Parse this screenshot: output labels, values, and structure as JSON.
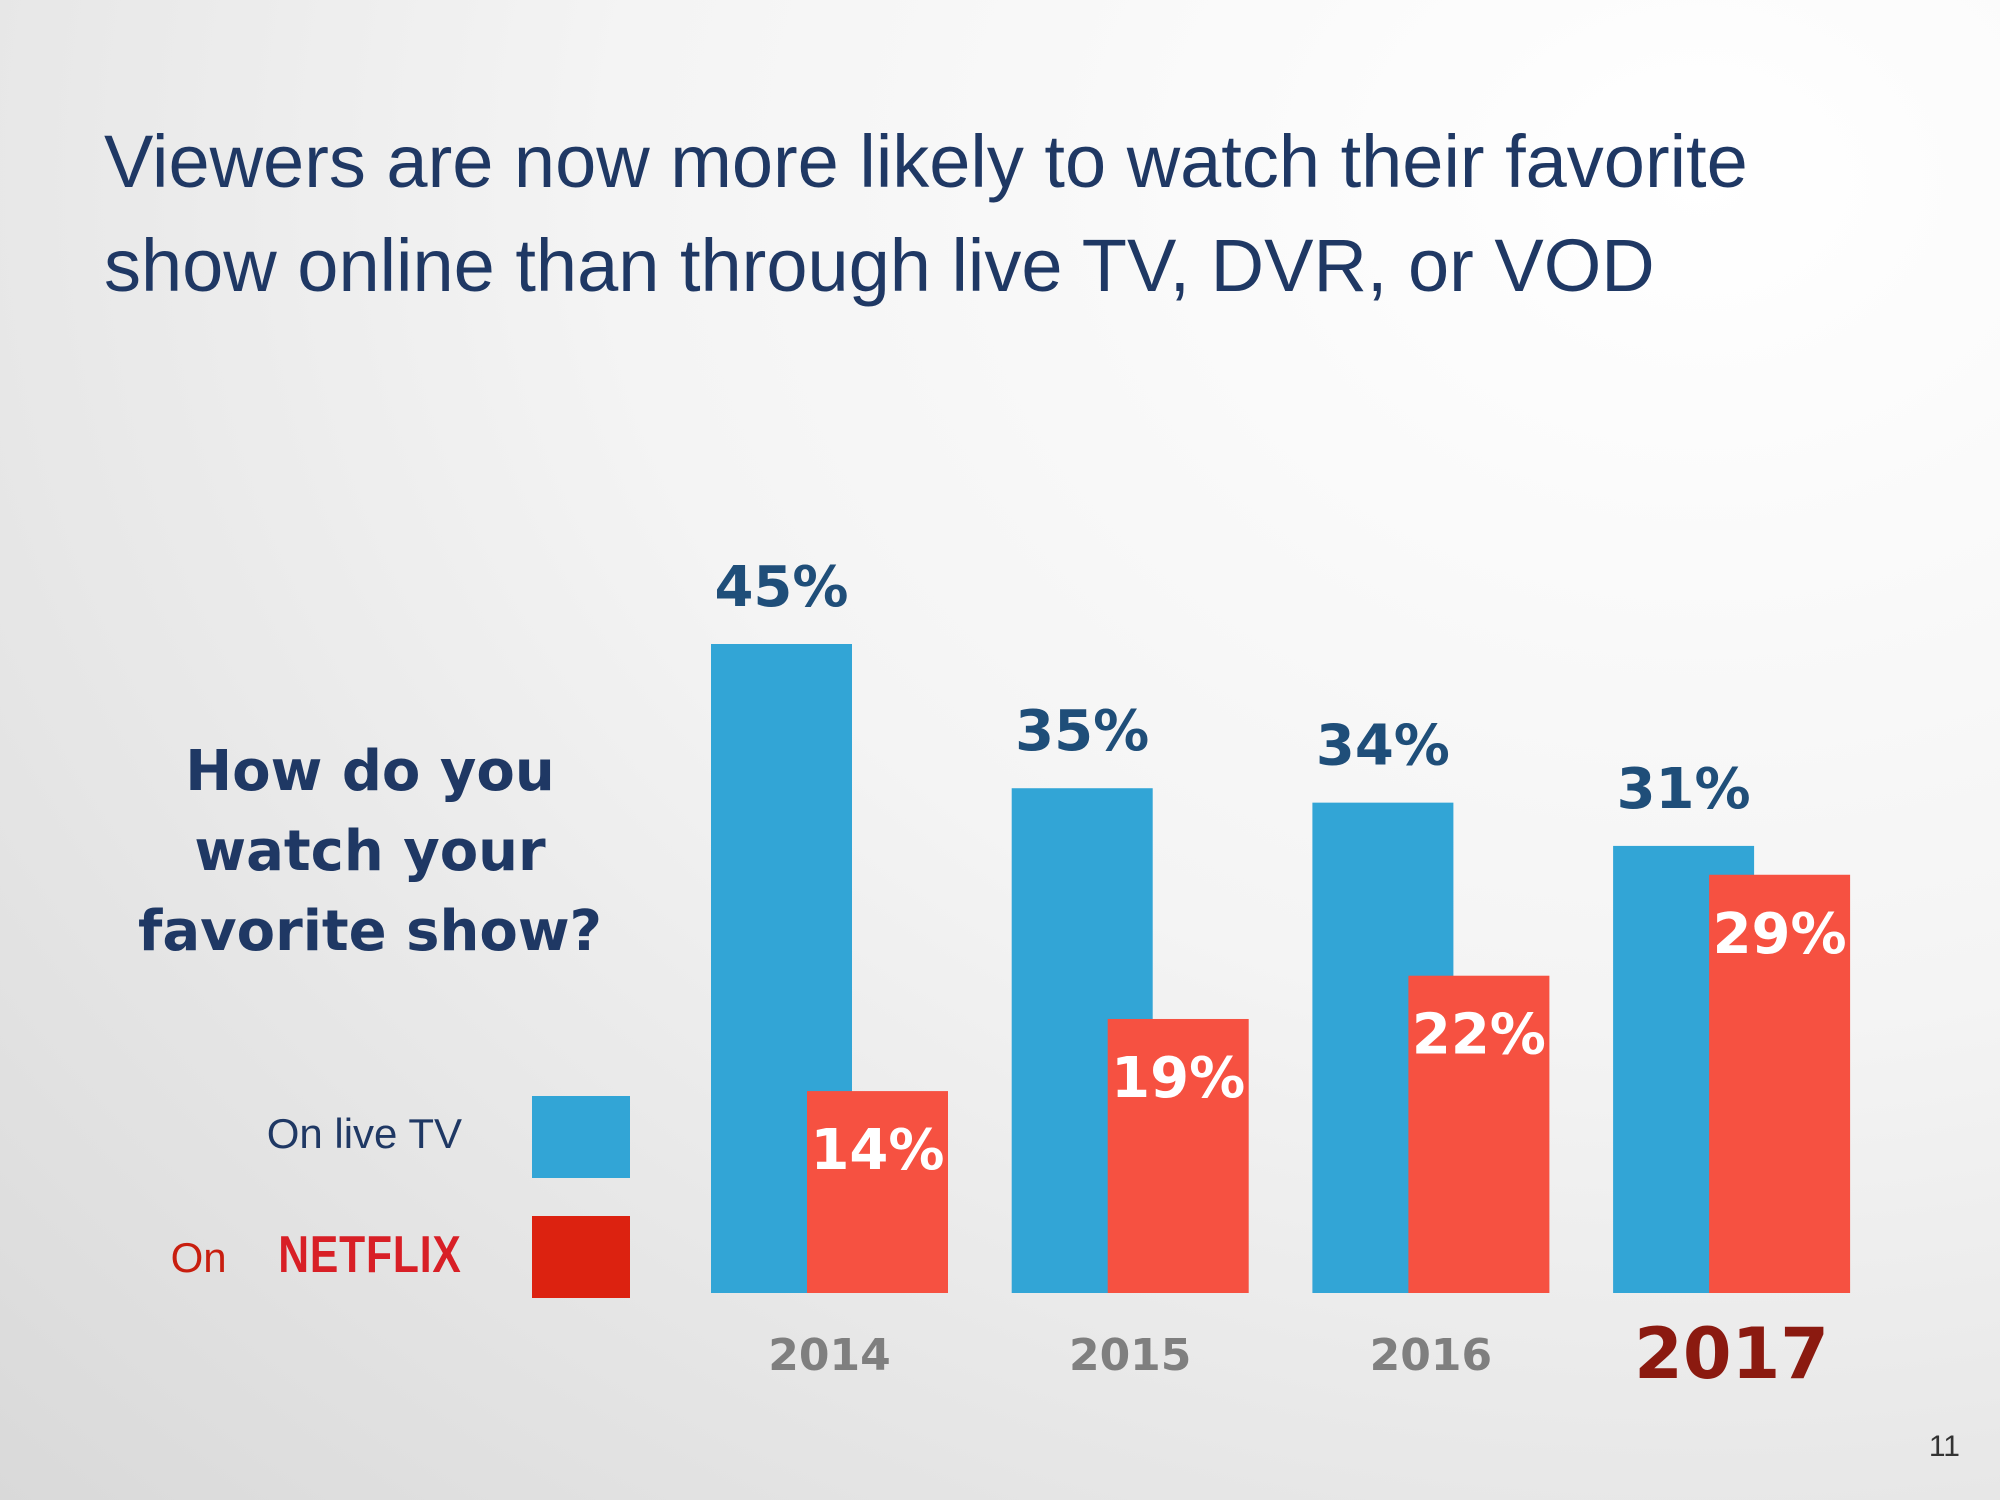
{
  "slide": {
    "title_line1": "Viewers are now more likely to watch their favorite",
    "title_line2": "show online than through live TV, DVR, or VOD",
    "page_number": "11"
  },
  "question": {
    "line1": "How do you",
    "line2": "watch your",
    "line3": "favorite show?"
  },
  "legend": {
    "live_label": "On live TV",
    "netflix_prefix": "On ",
    "netflix_brand": "NETFLIX"
  },
  "colors": {
    "title": "#1f3864",
    "live_tv_bar": "#32a5d6",
    "netflix_bar": "#f65141",
    "netflix_swatch": "#dc2210",
    "live_value_label": "#1f4e79",
    "netflix_value_label": "#ffffff",
    "tick_label": "#7f7f7f",
    "highlight_tick": "#8b1a10"
  },
  "chart_data": {
    "type": "bar",
    "categories": [
      "2014",
      "2015",
      "2016",
      "2017"
    ],
    "highlight_category": "2017",
    "series": [
      {
        "name": "On live TV",
        "values": [
          45,
          35,
          34,
          31
        ],
        "labels": [
          "45%",
          "35%",
          "34%",
          "31%"
        ]
      },
      {
        "name": "On NETFLIX",
        "values": [
          14,
          19,
          22,
          29
        ],
        "labels": [
          "14%",
          "19%",
          "22%",
          "29%"
        ]
      }
    ],
    "ylim": [
      0,
      45
    ],
    "grid": false,
    "legend_position": "left"
  }
}
